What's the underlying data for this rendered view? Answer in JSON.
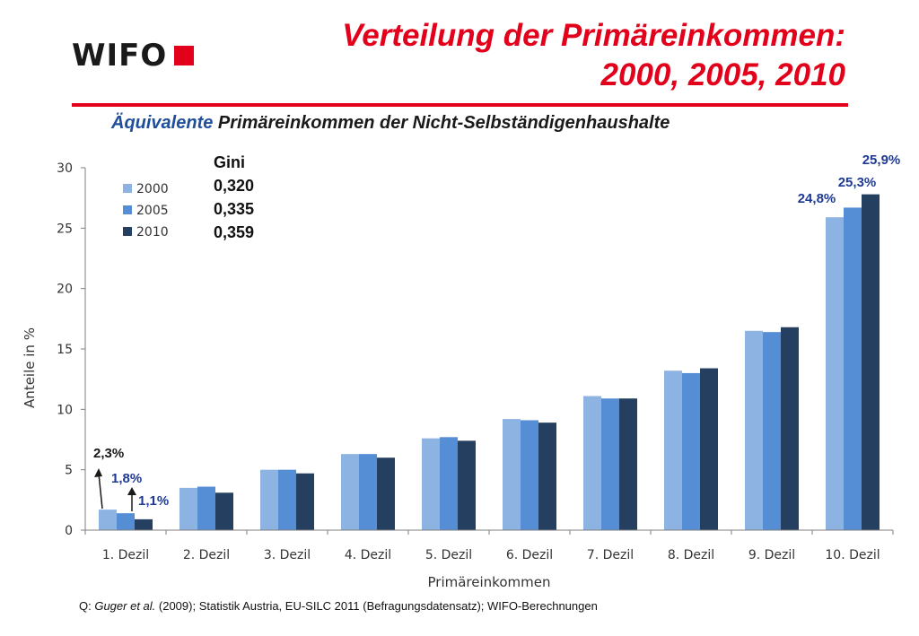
{
  "logo": {
    "text": "WIFO"
  },
  "title": {
    "line1": "Verteilung der Primäreinkommen:",
    "line2": "2000, 2005, 2010"
  },
  "subtitle": {
    "accent": "Äquivalente",
    "rest": " Primäreinkommen der Nicht-Selbständigenhaushalte"
  },
  "gini": {
    "label": "Gini",
    "values": [
      "0,320",
      "0,335",
      "0,359"
    ]
  },
  "source": {
    "prefix": "Q: ",
    "authors": "Guger et al.",
    "rest": " (2009); Statistik Austria, EU-SILC 2011 (Befragungsdatensatz); WIFO-Berechnungen"
  },
  "colors": {
    "accent": "#e2001a",
    "s2000": "#8db3e2",
    "s2005": "#558ed5",
    "s2010": "#243f60",
    "label_dark": "#1f3a93"
  },
  "chart_data": {
    "type": "bar",
    "categories": [
      "1. Dezil",
      "2. Dezil",
      "3. Dezil",
      "4. Dezil",
      "5. Dezil",
      "6. Dezil",
      "7. Dezil",
      "8. Dezil",
      "9. Dezil",
      "10. Dezil"
    ],
    "series": [
      {
        "name": "2000",
        "values": [
          1.7,
          3.5,
          5.0,
          6.3,
          7.6,
          9.2,
          11.1,
          13.2,
          16.5,
          25.9
        ]
      },
      {
        "name": "2005",
        "values": [
          1.4,
          3.6,
          5.0,
          6.3,
          7.7,
          9.1,
          10.9,
          13.0,
          16.4,
          26.7
        ]
      },
      {
        "name": "2010",
        "values": [
          0.9,
          3.1,
          4.7,
          6.0,
          7.4,
          8.9,
          10.9,
          13.4,
          16.8,
          27.8
        ]
      }
    ],
    "xlabel": "Primäreinkommen",
    "ylabel": "Anteile in %",
    "ylim": [
      0,
      30
    ],
    "yticks": [
      0,
      5,
      10,
      15,
      20,
      25,
      30
    ],
    "legend": "top-left",
    "grid": false,
    "annotations": {
      "low": [
        "2,3%",
        "1,8%",
        "1,1%"
      ],
      "high": [
        "24,8%",
        "25,3%",
        "25,9%"
      ]
    }
  }
}
